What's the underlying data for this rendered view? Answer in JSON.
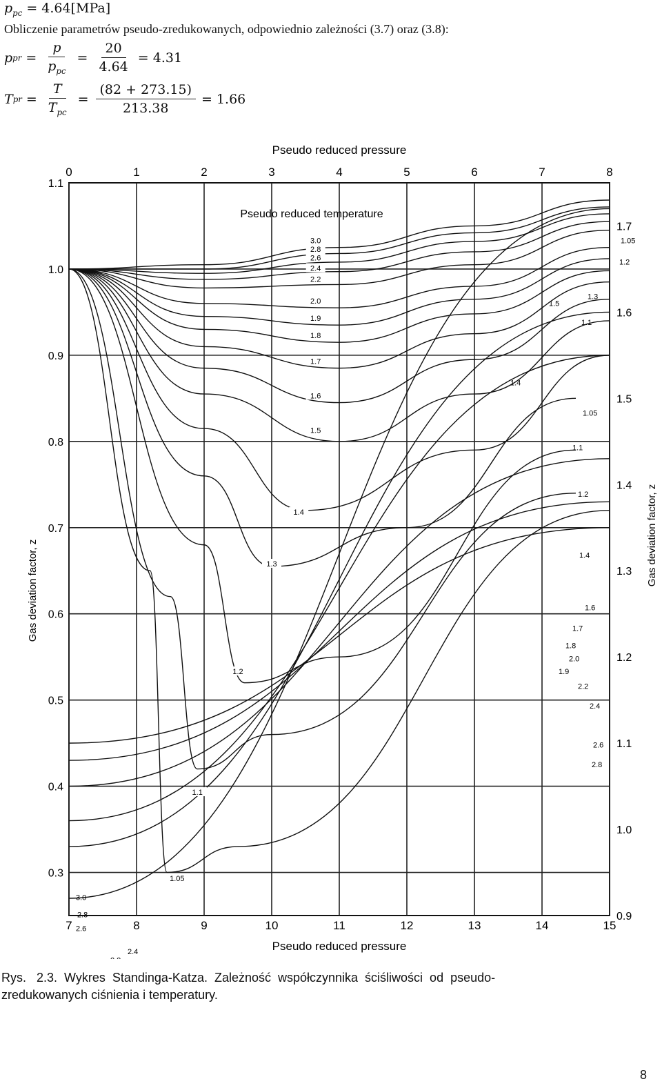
{
  "header": {
    "ppc_lhs": "p",
    "ppc_sub": "pc",
    "ppc_rhs": "= 4.64[MPa]",
    "intro_text": "Obliczenie parametrów pseudo-zredukowanych, odpowiednio zależności  (3.7) oraz (3.8):"
  },
  "eq_ppr": {
    "lhs": "p",
    "lhs_sub": "pr",
    "eq1": "=",
    "frac1_num": "p",
    "frac1_den": "p",
    "frac1_den_sub": "pc",
    "eq2": "=",
    "frac2_num": "20",
    "frac2_den": "4.64",
    "result": "= 4.31"
  },
  "eq_tpr": {
    "lhs": "T",
    "lhs_sub": "pr",
    "eq1": "=",
    "frac1_num": "T",
    "frac1_den": "T",
    "frac1_den_sub": "pc",
    "eq2": "=",
    "frac2_num": "(82 + 273.15)",
    "frac2_den": "213.38",
    "result": "= 1.66"
  },
  "chart_data": {
    "type": "line",
    "title": "Pseudo reduced pressure",
    "xlabel_top": "Pseudo reduced pressure",
    "xlabel_bottom": "Pseudo reduced pressure",
    "ylabel_left": "Gas deviation factor, z",
    "ylabel_right": "Gas deviation factor, z",
    "inner_label": "Pseudo reduced temperature",
    "x_top_ticks": [
      "0",
      "1",
      "2",
      "3",
      "4",
      "5",
      "6",
      "7",
      "8"
    ],
    "x_bottom_ticks": [
      "7",
      "8",
      "9",
      "10",
      "11",
      "12",
      "13",
      "14",
      "15"
    ],
    "y_left_ticks": [
      "1.1",
      "1.0",
      "0.9",
      "0.8",
      "0.7",
      "0.6",
      "0.5",
      "0.4",
      "0.3"
    ],
    "y_right_ticks": [
      "1.7",
      "1.6",
      "1.5",
      "1.4",
      "1.3",
      "1.2",
      "1.1",
      "1.0",
      "0.9"
    ],
    "xlim_top": [
      0,
      8
    ],
    "xlim_bottom": [
      7,
      15
    ],
    "ylim_left": [
      0.25,
      1.1
    ],
    "ylim_right": [
      0.9,
      1.75
    ],
    "grid": true,
    "tpr_labels_upper": [
      "3.0",
      "2.8",
      "2.6",
      "2.4",
      "2.2",
      "2.0",
      "1.9",
      "1.8",
      "1.7",
      "1.6",
      "1.5",
      "1.4",
      "1.3",
      "1.2",
      "1.1",
      "1.05"
    ],
    "tpr_labels_right": [
      "1.05",
      "1.2",
      "1.3",
      "1.1",
      "1.5",
      "1.4",
      "1.05",
      "1.1",
      "1.2",
      "1.4",
      "1.6",
      "1.7",
      "1.8",
      "1.9",
      "2.0",
      "2.2",
      "2.4",
      "2.6",
      "2.8"
    ],
    "tpr_labels_lower": [
      "3.0",
      "2.8",
      "2.6",
      "2.4",
      "2.2",
      "2.0",
      "1.9",
      "1.8",
      "1.7",
      "1.6",
      "1.2",
      "1.1",
      "1 05",
      "1.3",
      "1.4",
      "1.5"
    ],
    "series_upper": [
      {
        "name": "3.0",
        "points": [
          [
            0,
            1.0
          ],
          [
            2,
            1.005
          ],
          [
            4,
            1.025
          ],
          [
            6,
            1.05
          ],
          [
            8,
            1.08
          ]
        ]
      },
      {
        "name": "2.8",
        "points": [
          [
            0,
            1.0
          ],
          [
            2,
            1.0
          ],
          [
            4,
            1.018
          ],
          [
            6,
            1.042
          ],
          [
            8,
            1.072
          ]
        ]
      },
      {
        "name": "2.6",
        "points": [
          [
            0,
            1.0
          ],
          [
            2,
            0.995
          ],
          [
            4,
            1.008
          ],
          [
            6,
            1.032
          ],
          [
            8,
            1.064
          ]
        ]
      },
      {
        "name": "2.4",
        "points": [
          [
            0,
            1.0
          ],
          [
            2,
            0.988
          ],
          [
            4,
            0.997
          ],
          [
            6,
            1.02
          ],
          [
            8,
            1.055
          ]
        ]
      },
      {
        "name": "2.2",
        "points": [
          [
            0,
            1.0
          ],
          [
            2,
            0.978
          ],
          [
            4,
            0.982
          ],
          [
            6,
            1.005
          ],
          [
            8,
            1.045
          ]
        ]
      },
      {
        "name": "2.0",
        "points": [
          [
            0,
            1.0
          ],
          [
            2,
            0.96
          ],
          [
            4,
            0.955
          ],
          [
            6,
            0.98
          ],
          [
            8,
            1.025
          ]
        ]
      },
      {
        "name": "1.9",
        "points": [
          [
            0,
            1.0
          ],
          [
            2,
            0.945
          ],
          [
            4,
            0.935
          ],
          [
            6,
            0.965
          ],
          [
            8,
            1.012
          ]
        ]
      },
      {
        "name": "1.8",
        "points": [
          [
            0,
            1.0
          ],
          [
            2,
            0.93
          ],
          [
            4,
            0.915
          ],
          [
            6,
            0.948
          ],
          [
            8,
            0.998
          ]
        ]
      },
      {
        "name": "1.7",
        "points": [
          [
            0,
            1.0
          ],
          [
            2,
            0.91
          ],
          [
            4,
            0.885
          ],
          [
            6,
            0.925
          ],
          [
            8,
            0.985
          ]
        ]
      },
      {
        "name": "1.6",
        "points": [
          [
            0,
            1.0
          ],
          [
            2,
            0.885
          ],
          [
            4,
            0.845
          ],
          [
            6,
            0.895
          ],
          [
            8,
            0.965
          ]
        ]
      },
      {
        "name": "1.5",
        "points": [
          [
            0,
            1.0
          ],
          [
            2,
            0.855
          ],
          [
            4,
            0.8
          ],
          [
            6,
            0.855
          ],
          [
            8,
            0.94
          ]
        ]
      },
      {
        "name": "1.4",
        "points": [
          [
            0,
            1.0
          ],
          [
            2,
            0.815
          ],
          [
            3.5,
            0.72
          ],
          [
            6,
            0.79
          ],
          [
            8,
            0.9
          ]
        ]
      },
      {
        "name": "1.3",
        "points": [
          [
            0,
            1.0
          ],
          [
            2,
            0.76
          ],
          [
            3,
            0.655
          ],
          [
            5,
            0.7
          ],
          [
            7.5,
            0.85
          ]
        ]
      },
      {
        "name": "1.2",
        "points": [
          [
            0,
            1.0
          ],
          [
            2,
            0.68
          ],
          [
            2.6,
            0.52
          ],
          [
            4,
            0.55
          ],
          [
            7.5,
            0.79
          ]
        ]
      },
      {
        "name": "1.1",
        "points": [
          [
            0,
            1.0
          ],
          [
            1.5,
            0.62
          ],
          [
            1.9,
            0.42
          ],
          [
            3,
            0.46
          ],
          [
            7.5,
            0.74
          ]
        ]
      },
      {
        "name": "1.05",
        "points": [
          [
            0,
            1.0
          ],
          [
            1.2,
            0.65
          ],
          [
            1.45,
            0.3
          ],
          [
            2.5,
            0.33
          ],
          [
            8,
            0.72
          ]
        ]
      }
    ],
    "series_lower": [
      {
        "name": "3.0",
        "points": [
          [
            7,
            1.1
          ],
          [
            15,
            1.35
          ]
        ]
      },
      {
        "name": "2.6",
        "points": [
          [
            7,
            1.08
          ],
          [
            15,
            1.38
          ]
        ]
      },
      {
        "name": "2.2",
        "points": [
          [
            7,
            1.05
          ],
          [
            15,
            1.43
          ]
        ]
      },
      {
        "name": "1.8",
        "points": [
          [
            7,
            1.01
          ],
          [
            15,
            1.55
          ]
        ]
      },
      {
        "name": "1.6",
        "points": [
          [
            7,
            0.98
          ],
          [
            15,
            1.6
          ]
        ]
      },
      {
        "name": "1.5",
        "points": [
          [
            7,
            0.92
          ],
          [
            15,
            1.72
          ]
        ]
      }
    ]
  },
  "caption": {
    "line1": "Rys.   2.3.  Wykres  Standinga-Katza.  Zależność  współczynnika  ściśliwości  od  pseudo-",
    "line2": "zredukowanych ciśnienia i temperatury."
  },
  "page_number": "8"
}
